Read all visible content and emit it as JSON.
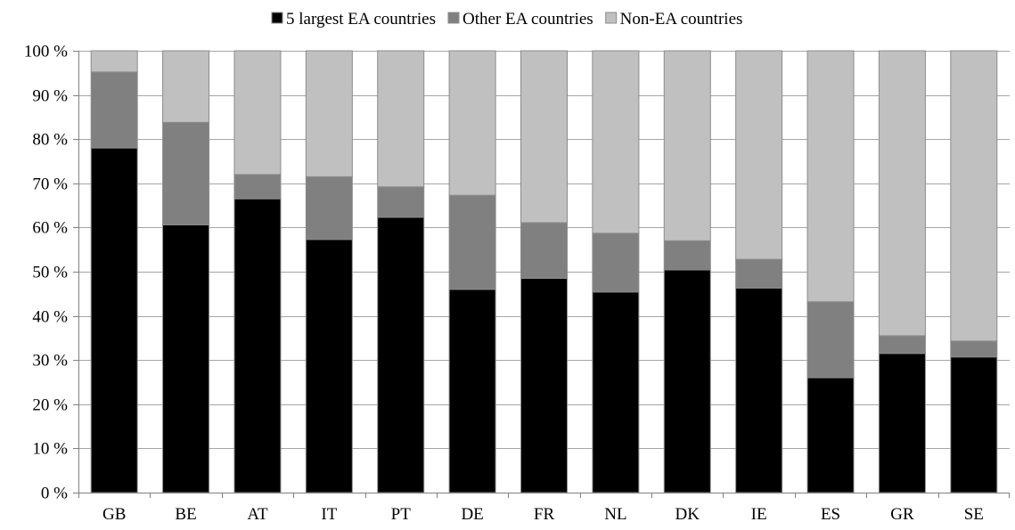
{
  "chart_data": {
    "type": "bar",
    "stacked": true,
    "orientation": "vertical",
    "categories": [
      "GB",
      "BE",
      "AT",
      "IT",
      "PT",
      "DE",
      "FR",
      "NL",
      "DK",
      "IE",
      "ES",
      "GR",
      "SE"
    ],
    "series": [
      {
        "name": "5 largest EA countries",
        "color": "#000000",
        "values": [
          78.0,
          60.6,
          66.5,
          57.3,
          62.3,
          46.0,
          48.5,
          45.4,
          50.4,
          46.3,
          26.0,
          31.5,
          30.7
        ]
      },
      {
        "name": "Other EA countries",
        "color": "#808080",
        "values": [
          17.2,
          23.2,
          5.5,
          14.2,
          6.9,
          21.3,
          12.6,
          13.3,
          6.6,
          6.5,
          17.2,
          4.0,
          3.6
        ]
      },
      {
        "name": "Non-EA countries",
        "color": "#c0c0c0",
        "values": [
          4.8,
          16.2,
          28.0,
          28.5,
          30.8,
          32.7,
          38.9,
          41.3,
          43.0,
          47.2,
          56.8,
          64.5,
          65.7
        ]
      }
    ],
    "yticks": [
      "0 %",
      "10 %",
      "20 %",
      "30 %",
      "40 %",
      "50 %",
      "60 %",
      "70 %",
      "80 %",
      "90 %",
      "100 %"
    ],
    "ylim": [
      0,
      100
    ],
    "y_unit": "%",
    "grid": true,
    "legend_position": "top-center",
    "title": "",
    "xlabel": "",
    "ylabel": ""
  }
}
